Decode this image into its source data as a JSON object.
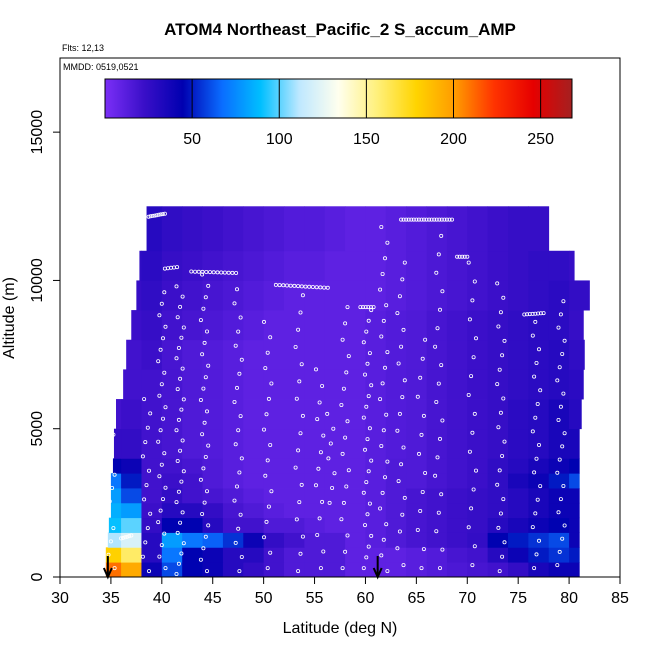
{
  "chart_data": {
    "type": "heatmap",
    "title": "ATOM4 Northeast_Pacific_2 S_accum_AMP",
    "annotations": {
      "flights": "Flts: 12,13",
      "dates": "MMDD: 0519,0521"
    },
    "xlabel": "Latitude (deg N)",
    "ylabel": "Altitude (m)",
    "xlim": [
      30,
      85
    ],
    "ylim": [
      0,
      17500
    ],
    "xticks": [
      30,
      35,
      40,
      45,
      50,
      55,
      60,
      65,
      70,
      75,
      80,
      85
    ],
    "yticks": [
      0,
      5000,
      10000,
      15000
    ],
    "colorbar": {
      "range": [
        0,
        268
      ],
      "ticks": [
        50,
        100,
        150,
        200,
        250
      ],
      "colors": [
        "#7B2FF7",
        "#3A0FC8",
        "#0000B0",
        "#0A6CFF",
        "#00BFFF",
        "#BFE8FF",
        "#FFFFEE",
        "#FFF07A",
        "#FFD400",
        "#FF9A00",
        "#FF3300",
        "#E60000",
        "#A52020"
      ]
    },
    "grid": false,
    "arrows_at_latitude": [
      34.7,
      61.2
    ],
    "profile_altitude_bands_m": [
      0,
      500,
      1000,
      1500,
      2000,
      2500,
      3000,
      3500,
      4000,
      5000,
      6000,
      7000,
      8000,
      9000,
      10000,
      11000,
      12500
    ],
    "profile_lat_extent_deg_n": [
      [
        34.5,
        81
      ],
      [
        34.5,
        81
      ],
      [
        34.7,
        81
      ],
      [
        34.8,
        81
      ],
      [
        35,
        81
      ],
      [
        35,
        81
      ],
      [
        35,
        81
      ],
      [
        35.2,
        81
      ],
      [
        35.3,
        81
      ],
      [
        35.5,
        81.2
      ],
      [
        36.2,
        81.4
      ],
      [
        36.5,
        81.5
      ],
      [
        37,
        81.4
      ],
      [
        37.5,
        82
      ],
      [
        37.8,
        80.5
      ],
      [
        38.5,
        78
      ]
    ],
    "gridded_values": {
      "latitude_bins_deg_n": [
        34,
        36,
        38,
        40,
        42,
        44,
        46,
        48,
        50,
        52,
        54,
        56,
        58,
        60,
        62,
        64,
        66,
        68,
        70,
        72,
        74,
        76,
        78,
        80,
        82
      ],
      "altitude_bands_m": [
        0,
        500,
        1000,
        1500,
        2000,
        2500,
        3000,
        3500,
        4000,
        5000,
        6000,
        7000,
        8000,
        9000,
        10000,
        11000,
        12500
      ],
      "values": [
        [
          210,
          195,
          40,
          60,
          45,
          40,
          30,
          25,
          20,
          15,
          15,
          15,
          10,
          10,
          10,
          12,
          14,
          16,
          18,
          20,
          25,
          35,
          40,
          40
        ],
        [
          180,
          160,
          30,
          70,
          45,
          40,
          30,
          30,
          20,
          15,
          15,
          15,
          10,
          10,
          10,
          12,
          14,
          18,
          20,
          30,
          40,
          50,
          55,
          50
        ],
        [
          110,
          120,
          30,
          80,
          70,
          65,
          55,
          40,
          25,
          20,
          15,
          15,
          10,
          12,
          15,
          18,
          20,
          22,
          25,
          45,
          50,
          55,
          60,
          40
        ],
        [
          90,
          100,
          25,
          45,
          45,
          30,
          20,
          20,
          15,
          15,
          12,
          10,
          10,
          12,
          15,
          18,
          20,
          22,
          24,
          30,
          35,
          40,
          45,
          40
        ],
        [
          85,
          80,
          22,
          30,
          30,
          25,
          18,
          15,
          12,
          10,
          10,
          10,
          10,
          12,
          15,
          18,
          20,
          22,
          24,
          26,
          30,
          35,
          40,
          40
        ],
        [
          80,
          60,
          20,
          25,
          20,
          18,
          15,
          12,
          10,
          10,
          10,
          10,
          10,
          12,
          15,
          18,
          20,
          22,
          24,
          26,
          30,
          35,
          40,
          40
        ],
        [
          70,
          50,
          20,
          22,
          20,
          15,
          12,
          10,
          10,
          10,
          10,
          10,
          10,
          12,
          15,
          15,
          18,
          20,
          22,
          26,
          35,
          40,
          50,
          60
        ],
        [
          45,
          40,
          20,
          20,
          18,
          15,
          12,
          10,
          10,
          10,
          10,
          10,
          10,
          12,
          15,
          15,
          18,
          20,
          22,
          26,
          30,
          35,
          40,
          45
        ],
        [
          25,
          25,
          20,
          18,
          15,
          14,
          12,
          10,
          10,
          10,
          10,
          10,
          10,
          12,
          14,
          15,
          18,
          20,
          22,
          24,
          28,
          30,
          35,
          35
        ],
        [
          20,
          22,
          20,
          18,
          15,
          14,
          12,
          10,
          10,
          10,
          10,
          10,
          10,
          12,
          14,
          15,
          18,
          20,
          22,
          24,
          28,
          30,
          35,
          30
        ],
        [
          18,
          20,
          20,
          18,
          15,
          14,
          12,
          10,
          10,
          10,
          10,
          10,
          10,
          12,
          14,
          15,
          18,
          20,
          22,
          24,
          26,
          28,
          30,
          28
        ],
        [
          18,
          20,
          22,
          18,
          15,
          14,
          12,
          10,
          10,
          10,
          10,
          10,
          10,
          12,
          14,
          15,
          18,
          20,
          22,
          24,
          26,
          28,
          30,
          26
        ],
        [
          20,
          22,
          24,
          20,
          18,
          16,
          14,
          12,
          10,
          10,
          10,
          10,
          10,
          12,
          14,
          15,
          18,
          20,
          22,
          24,
          26,
          28,
          28,
          24
        ],
        [
          22,
          24,
          26,
          22,
          20,
          18,
          16,
          14,
          12,
          10,
          10,
          10,
          10,
          10,
          12,
          14,
          16,
          18,
          20,
          22,
          24,
          26,
          28,
          25
        ],
        [
          24,
          26,
          28,
          24,
          22,
          20,
          18,
          16,
          14,
          12,
          12,
          10,
          10,
          10,
          12,
          14,
          16,
          18,
          20,
          22,
          24,
          26,
          26,
          24
        ],
        [
          26,
          28,
          30,
          26,
          24,
          22,
          20,
          18,
          16,
          14,
          14,
          12,
          10,
          10,
          12,
          14,
          16,
          18,
          20,
          22,
          24,
          24,
          22,
          20
        ]
      ]
    }
  }
}
